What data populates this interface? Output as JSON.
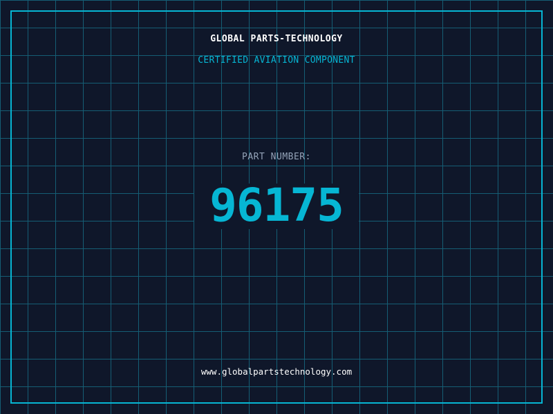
{
  "header": {
    "company": "GLOBAL PARTS-TECHNOLOGY",
    "subtitle": "CERTIFIED AVIATION COMPONENT"
  },
  "part": {
    "label": "PART NUMBER:",
    "number": "96175"
  },
  "footer": {
    "url": "www.globalpartstechnology.com"
  },
  "colors": {
    "accent": "#06b6d4",
    "background": "#0f172a",
    "grid": "#155e75"
  }
}
